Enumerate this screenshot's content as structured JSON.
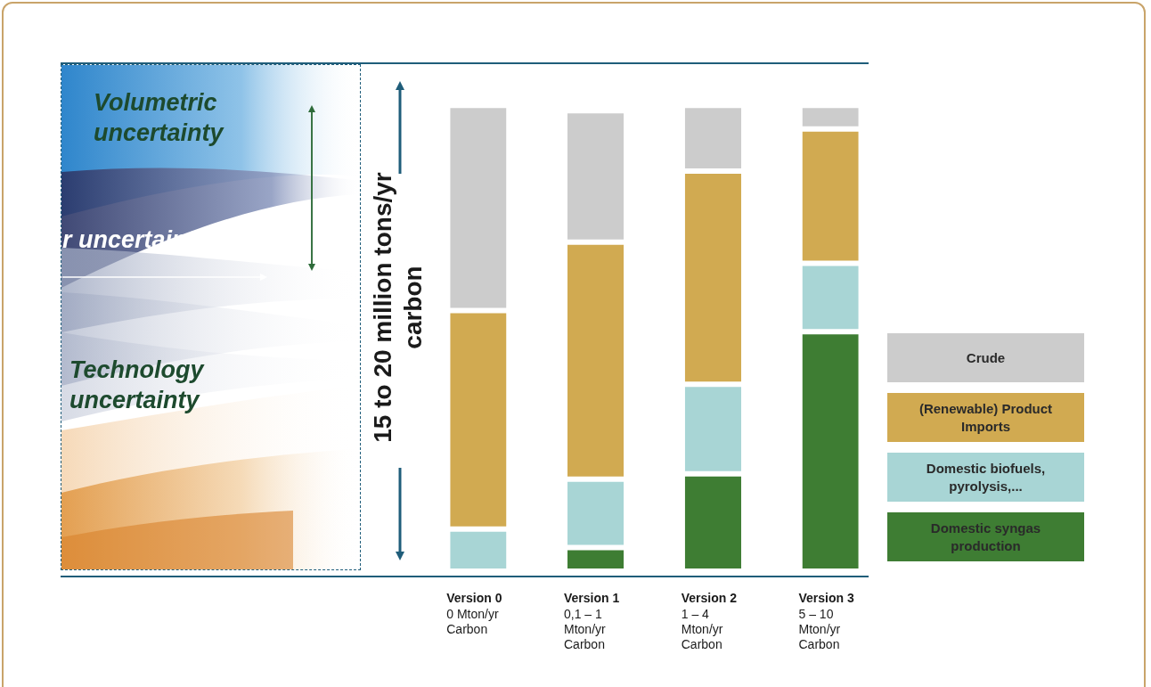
{
  "chart_data": {
    "type": "bar",
    "stacked": true,
    "ylabel": "15 to 20 million tons/yr carbon",
    "annotations": [
      "Volumetric uncertainty",
      "r uncertainty",
      "Technology uncertainty"
    ],
    "categories": [
      "Version 0",
      "Version 1",
      "Version 2",
      "Version 3"
    ],
    "category_sublabels": [
      "0 Mton/yr Carbon",
      "0,1 – 1 Mton/yr Carbon",
      "1 – 4 Mton/yr Carbon",
      "5 – 10 Mton/yr Carbon"
    ],
    "series": [
      {
        "name": "Crude",
        "color": "#cccccc",
        "values": [
          7.8,
          5.0,
          2.5,
          0.9
        ]
      },
      {
        "name": "(Renewable) Product Imports",
        "color": "#d1aa51",
        "values": [
          8.3,
          9.0,
          8.1,
          5.1
        ]
      },
      {
        "name": "Domestic biofuels, pyrolysis,...",
        "color": "#a8d5d5",
        "values": [
          1.6,
          2.6,
          3.4,
          2.6
        ]
      },
      {
        "name": "Domestic syngas production",
        "color": "#3e7d33",
        "values": [
          0,
          0.9,
          3.7,
          9.1
        ]
      }
    ],
    "ylim": [
      0,
      19.3
    ],
    "grid": false,
    "legend": "right",
    "tick_labels": "x",
    "data_labels": false
  }
}
